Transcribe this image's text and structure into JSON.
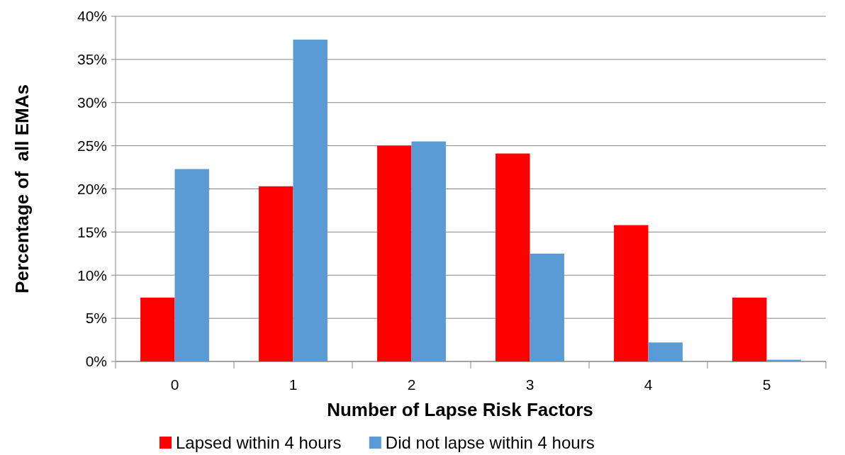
{
  "chart_data": {
    "type": "bar",
    "xlabel": "Number of Lapse Risk Factors",
    "ylabel": "Percentage of  all EMAs",
    "categories": [
      "0",
      "1",
      "2",
      "3",
      "4",
      "5"
    ],
    "series": [
      {
        "name": "Lapsed within 4 hours",
        "color": "#ff0000",
        "values": [
          7.4,
          20.3,
          25,
          24.1,
          15.8,
          7.4
        ]
      },
      {
        "name": "Did not lapse within 4 hours",
        "color": "#5b9bd5",
        "values": [
          22.3,
          37.3,
          25.5,
          12.5,
          2.2,
          0.2
        ]
      }
    ],
    "ylim": [
      0,
      40
    ],
    "yticks": [
      {
        "value": 0,
        "label": "0%"
      },
      {
        "value": 5,
        "label": "5%"
      },
      {
        "value": 10,
        "label": "10%"
      },
      {
        "value": 15,
        "label": "15%"
      },
      {
        "value": 20,
        "label": "20%"
      },
      {
        "value": 25,
        "label": "25%"
      },
      {
        "value": 30,
        "label": "30%"
      },
      {
        "value": 35,
        "label": "35%"
      },
      {
        "value": 40,
        "label": "40%"
      }
    ],
    "grid": "y",
    "legend": "bottom"
  }
}
